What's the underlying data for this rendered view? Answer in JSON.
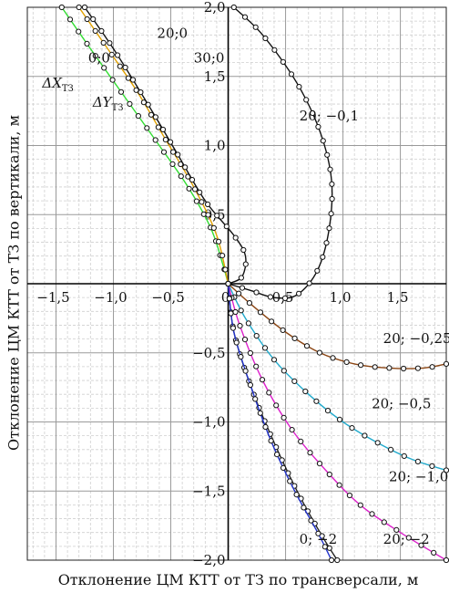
{
  "chart_data": {
    "type": "line",
    "xlabel": "Отклонение ЦМ КТТ от ТЗ по трансверсали, м",
    "ylabel": "Отклонение ЦМ КТТ от ТЗ по вертикали, м",
    "xlim": [
      -1.75,
      1.9
    ],
    "ylim": [
      -2.0,
      2.0
    ],
    "grid": true,
    "x_ticks": [
      {
        "v": -1.5,
        "label": "−1,5"
      },
      {
        "v": -1.0,
        "label": "−1,0"
      },
      {
        "v": -0.5,
        "label": "−0,5"
      },
      {
        "v": 0.0,
        "label": "0"
      },
      {
        "v": 0.5,
        "label": "0,5"
      },
      {
        "v": 1.0,
        "label": "1,0"
      },
      {
        "v": 1.5,
        "label": "1,5"
      }
    ],
    "y_ticks": [
      {
        "v": 2.0,
        "label": "2,0"
      },
      {
        "v": 1.5,
        "label": "1,5"
      },
      {
        "v": 1.0,
        "label": "1,0"
      },
      {
        "v": 0.5,
        "label": "0,5"
      },
      {
        "v": -0.5,
        "label": "−0,5"
      },
      {
        "v": -1.0,
        "label": "−1,0"
      },
      {
        "v": -1.5,
        "label": "−1,5"
      },
      {
        "v": -2.0,
        "label": "−2,0"
      }
    ],
    "series": [
      {
        "name": "0;0",
        "color": "#33dd33",
        "points": [
          [
            -1.45,
            2.0
          ],
          [
            -1.2,
            1.7
          ],
          [
            -0.9,
            1.35
          ],
          [
            -0.6,
            1.0
          ],
          [
            -0.35,
            0.7
          ],
          [
            -0.15,
            0.4
          ],
          [
            -0.05,
            0.15
          ],
          [
            0,
            0
          ]
        ]
      },
      {
        "name": "20;0",
        "color": "#e0a000",
        "points": [
          [
            -1.3,
            2.0
          ],
          [
            -1.05,
            1.7
          ],
          [
            -0.8,
            1.4
          ],
          [
            -0.55,
            1.05
          ],
          [
            -0.3,
            0.7
          ],
          [
            -0.1,
            0.35
          ],
          [
            0,
            0
          ]
        ]
      },
      {
        "name": "30;0",
        "color": "#111111",
        "points": [
          [
            -1.25,
            2.0
          ],
          [
            -1.0,
            1.7
          ],
          [
            -0.7,
            1.3
          ],
          [
            -0.45,
            0.95
          ],
          [
            -0.2,
            0.6
          ],
          [
            0.05,
            0.35
          ],
          [
            0.15,
            0.2
          ],
          [
            0.12,
            0.05
          ],
          [
            0,
            0
          ]
        ]
      },
      {
        "name": "20; −0,1",
        "color": "#111111",
        "points": [
          [
            0.05,
            2.0
          ],
          [
            0.3,
            1.8
          ],
          [
            0.6,
            1.45
          ],
          [
            0.8,
            1.1
          ],
          [
            0.9,
            0.75
          ],
          [
            0.88,
            0.4
          ],
          [
            0.78,
            0.1
          ],
          [
            0.6,
            -0.08
          ],
          [
            0.4,
            -0.1
          ],
          [
            0.2,
            -0.05
          ],
          [
            0,
            0
          ]
        ]
      },
      {
        "name": "20; −0,25",
        "color": "#8b4513",
        "points": [
          [
            0,
            0
          ],
          [
            0.2,
            -0.15
          ],
          [
            0.5,
            -0.35
          ],
          [
            0.8,
            -0.5
          ],
          [
            1.1,
            -0.58
          ],
          [
            1.4,
            -0.61
          ],
          [
            1.7,
            -0.61
          ],
          [
            1.9,
            -0.58
          ]
        ]
      },
      {
        "name": "20; −0,5",
        "color": "#22aacc",
        "points": [
          [
            0,
            0
          ],
          [
            0.15,
            -0.25
          ],
          [
            0.4,
            -0.55
          ],
          [
            0.7,
            -0.8
          ],
          [
            1.0,
            -1.0
          ],
          [
            1.3,
            -1.15
          ],
          [
            1.6,
            -1.27
          ],
          [
            1.9,
            -1.35
          ]
        ]
      },
      {
        "name": "20; −1,0",
        "color": "#dd22cc",
        "points": [
          [
            0,
            0
          ],
          [
            0.1,
            -0.3
          ],
          [
            0.3,
            -0.7
          ],
          [
            0.55,
            -1.05
          ],
          [
            0.85,
            -1.35
          ],
          [
            1.15,
            -1.6
          ],
          [
            1.5,
            -1.8
          ],
          [
            1.9,
            -2.0
          ]
        ]
      },
      {
        "name": "20; −2",
        "color": "#222222",
        "points": [
          [
            0,
            0
          ],
          [
            0.05,
            -0.35
          ],
          [
            0.2,
            -0.75
          ],
          [
            0.4,
            -1.15
          ],
          [
            0.6,
            -1.5
          ],
          [
            0.8,
            -1.8
          ],
          [
            0.95,
            -2.0
          ]
        ]
      },
      {
        "name": "0; −2",
        "color": "#2233cc",
        "points": [
          [
            0,
            0
          ],
          [
            0.05,
            -0.35
          ],
          [
            0.2,
            -0.75
          ],
          [
            0.38,
            -1.15
          ],
          [
            0.58,
            -1.5
          ],
          [
            0.78,
            -1.8
          ],
          [
            0.9,
            -2.0
          ]
        ]
      }
    ],
    "annotations": [
      {
        "text": "20;0",
        "x": -0.62,
        "y": 1.78
      },
      {
        "text": "30;0",
        "x": -0.3,
        "y": 1.6
      },
      {
        "text": "0;0",
        "x": -1.22,
        "y": 1.6
      },
      {
        "text": "ΔX",
        "sub": "ТЗ",
        "x": -1.62,
        "y": 1.42
      },
      {
        "text": "ΔY",
        "sub": "ТЗ",
        "x": -1.18,
        "y": 1.28
      },
      {
        "text": "20; −0,1",
        "x": 0.62,
        "y": 1.18
      },
      {
        "text": "20; −0,25",
        "x": 1.35,
        "y": -0.43
      },
      {
        "text": "20; −0,5",
        "x": 1.25,
        "y": -0.9
      },
      {
        "text": "20; −1,0",
        "x": 1.4,
        "y": -1.43
      },
      {
        "text": "0; −2",
        "x": 0.62,
        "y": -1.88
      },
      {
        "text": "20; −2",
        "x": 1.35,
        "y": -1.88
      }
    ]
  }
}
